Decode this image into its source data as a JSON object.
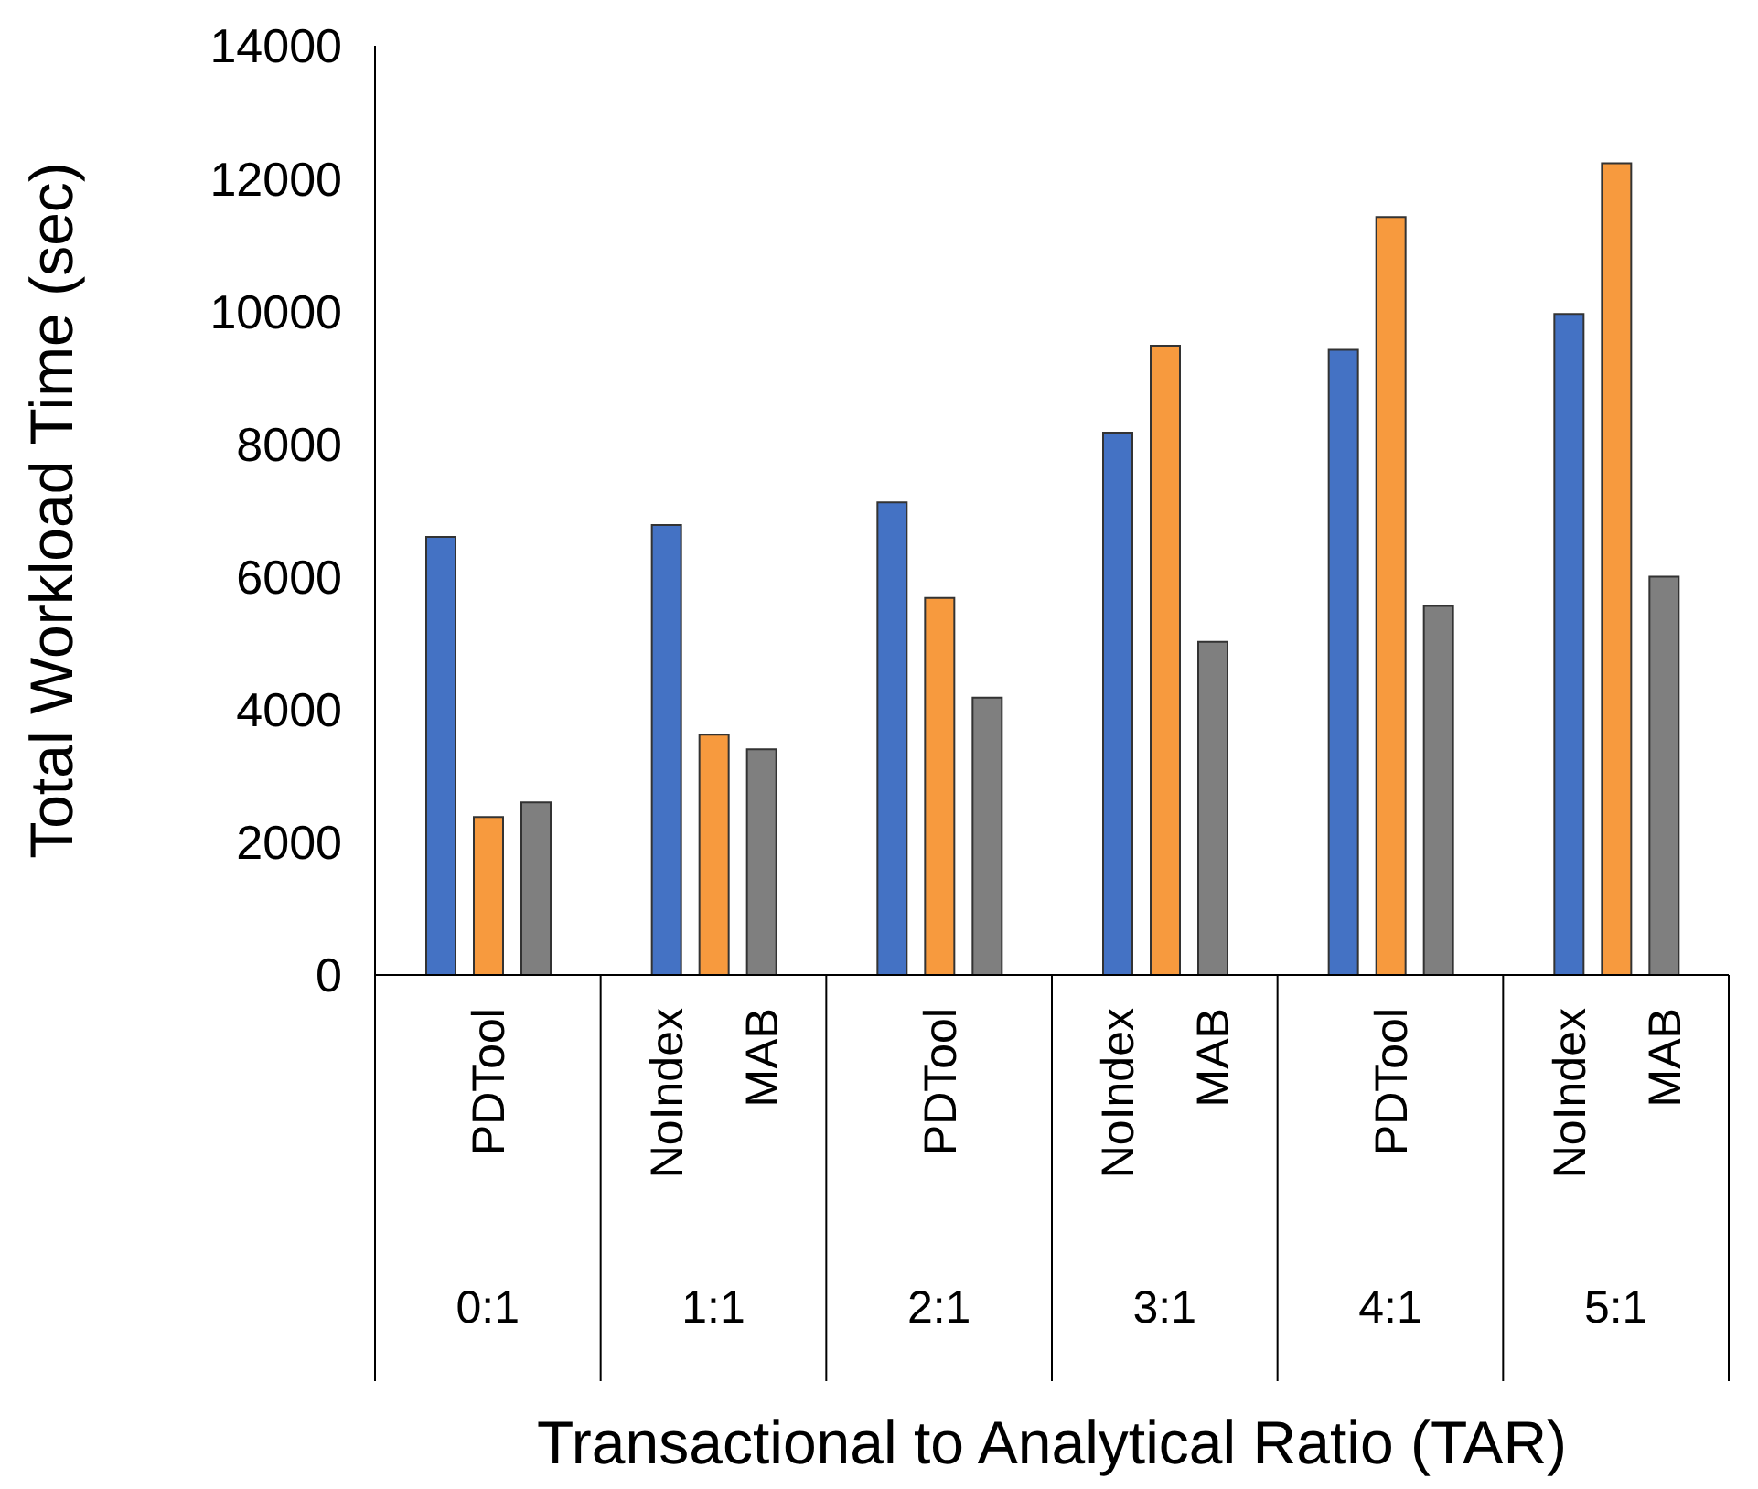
{
  "chart_data": {
    "type": "bar",
    "xlabel": "Transactional to Analytical Ratio (TAR)",
    "ylabel": "Total Workload Time (sec)",
    "categories": [
      "0:1",
      "1:1",
      "2:1",
      "3:1",
      "4:1",
      "5:1"
    ],
    "series": [
      {
        "name": "NoIndex",
        "color": "#4472c4",
        "values": [
          6600,
          6780,
          7120,
          8170,
          9420,
          9960
        ]
      },
      {
        "name": "PDTool",
        "color": "#f79a3e",
        "values": [
          2380,
          3620,
          5680,
          9480,
          11420,
          12230
        ]
      },
      {
        "name": "MAB",
        "color": "#7f7f7f",
        "values": [
          2600,
          3400,
          4180,
          5020,
          5560,
          6000
        ]
      }
    ],
    "ylim": [
      0,
      14000
    ],
    "yticks": [
      0,
      2000,
      4000,
      6000,
      8000,
      10000,
      12000,
      14000
    ]
  }
}
